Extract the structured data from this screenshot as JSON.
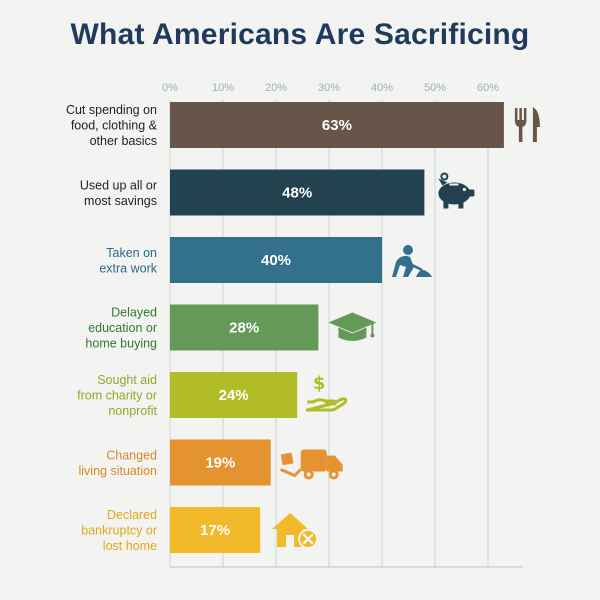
{
  "title": "What Americans Are Sacrificing",
  "chart_data": {
    "type": "bar",
    "orientation": "horizontal",
    "title": "What Americans Are Sacrificing",
    "xlabel": "",
    "ylabel": "",
    "xlim": [
      0,
      65
    ],
    "x_ticks": [
      0,
      10,
      20,
      30,
      40,
      50,
      60
    ],
    "tick_suffix": "%",
    "grid": true,
    "categories": [
      [
        "Cut spending on",
        "food, clothing &",
        "other basics"
      ],
      [
        "Used up all or",
        "most savings"
      ],
      [
        "Taken on",
        "extra work"
      ],
      [
        "Delayed",
        "education or",
        "home buying"
      ],
      [
        "Sought aid",
        "from charity or",
        "nonprofit"
      ],
      [
        "Changed",
        "living situation"
      ],
      [
        "Declared",
        "bankruptcy or",
        "lost home"
      ]
    ],
    "values": [
      63,
      48,
      40,
      28,
      24,
      19,
      17
    ],
    "value_labels": [
      "63%",
      "48%",
      "40%",
      "28%",
      "24%",
      "19%",
      "17%"
    ],
    "colors": [
      "#67554a",
      "#23424f",
      "#32708c",
      "#649957",
      "#b2bc27",
      "#e49330",
      "#f2b92a"
    ],
    "label_colors": [
      "#222222",
      "#222222",
      "#2a6a8a",
      "#2f7a35",
      "#9aa32a",
      "#d9892a",
      "#e0a81d"
    ],
    "icons": [
      "fork-knife-icon",
      "piggy-bank-icon",
      "worker-shovel-icon",
      "graduation-cap-icon",
      "hand-dollar-icon",
      "moving-truck-icon",
      "house-x-icon"
    ]
  }
}
